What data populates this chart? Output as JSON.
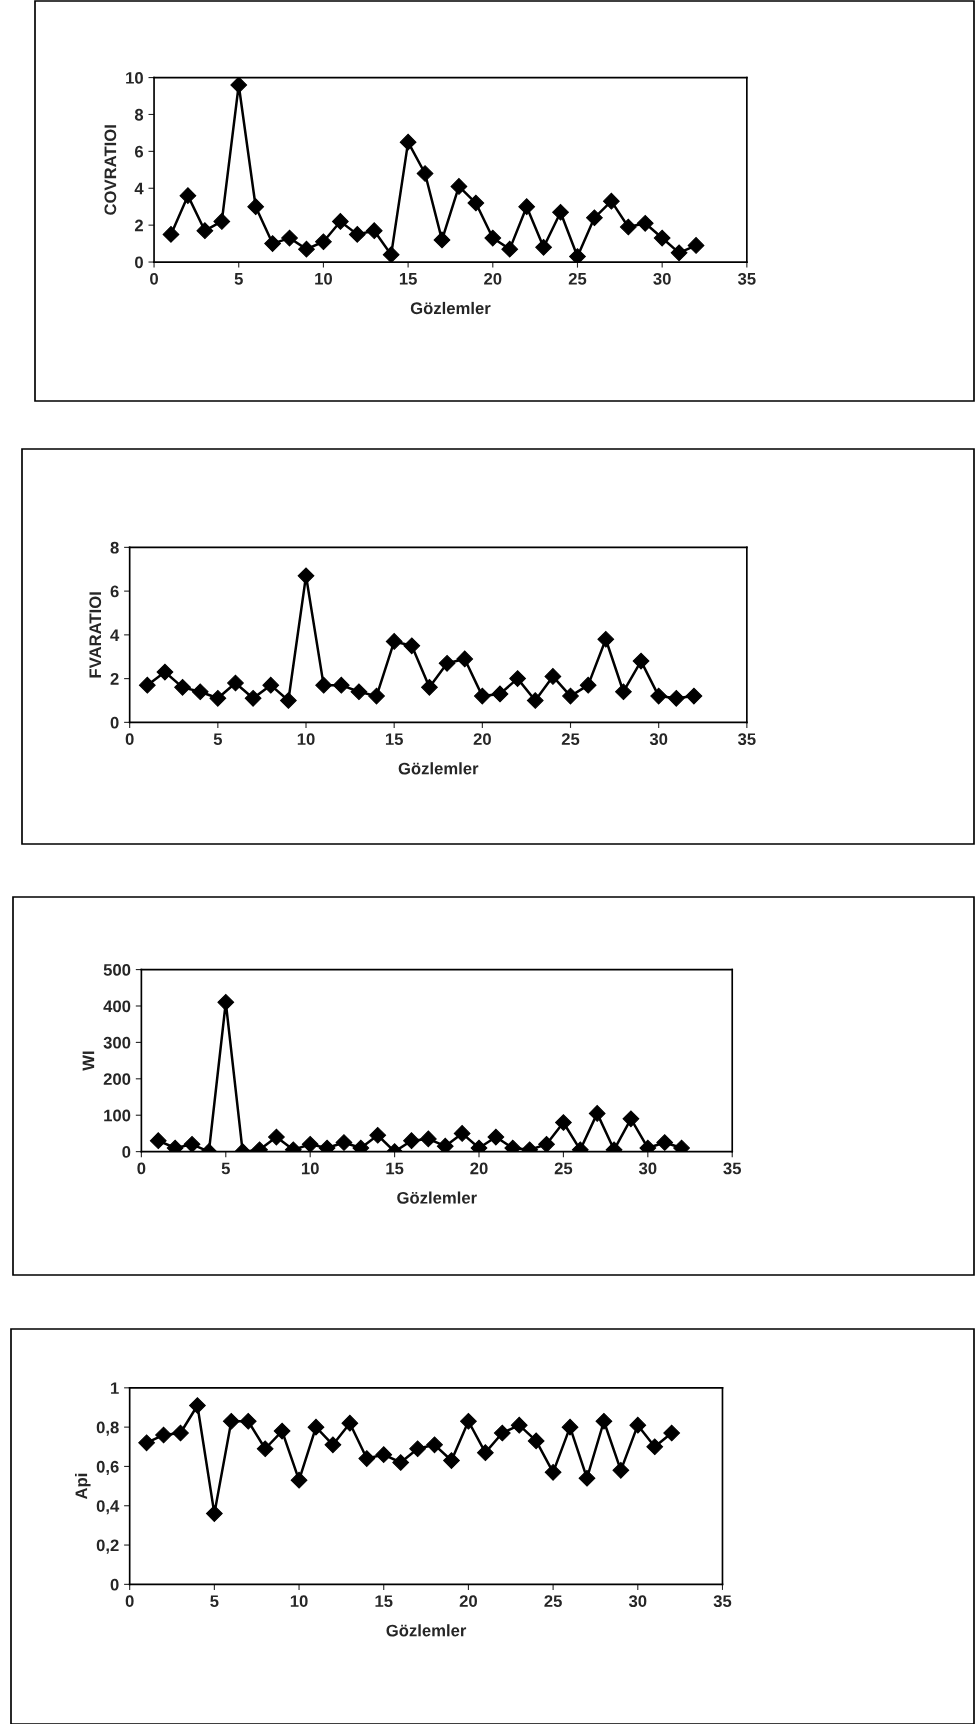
{
  "chart_data": [
    {
      "type": "line",
      "xlabel": "Gözlemler",
      "ylabel": "COVRATIOI",
      "x": [
        1,
        2,
        3,
        4,
        5,
        6,
        7,
        8,
        9,
        10,
        11,
        12,
        13,
        14,
        15,
        16,
        17,
        18,
        19,
        20,
        21,
        22,
        23,
        24,
        25,
        26,
        27,
        28,
        29,
        30,
        31,
        32
      ],
      "series": [
        {
          "color": "#000000",
          "values": [
            1.5,
            3.6,
            1.7,
            2.2,
            9.6,
            3.0,
            1.0,
            1.3,
            0.7,
            1.1,
            2.2,
            1.5,
            1.7,
            0.4,
            6.5,
            4.8,
            1.2,
            4.1,
            3.2,
            1.3,
            0.7,
            3.0,
            0.8,
            2.7,
            0.3,
            2.4,
            3.3,
            1.9,
            2.1,
            1.3,
            0.5,
            0.9
          ]
        }
      ],
      "xlim": [
        0,
        35
      ],
      "xticks": [
        0,
        5,
        10,
        15,
        20,
        25,
        30,
        35
      ],
      "ylim": [
        0,
        10
      ],
      "yticks": [
        0,
        2,
        4,
        6,
        8,
        10
      ],
      "marker": "diamond",
      "line_style": "solid",
      "grid": false,
      "legend": false
    },
    {
      "type": "line",
      "xlabel": "Gözlemler",
      "ylabel": "FVARATIOI",
      "x": [
        1,
        2,
        3,
        4,
        5,
        6,
        7,
        8,
        9,
        10,
        11,
        12,
        13,
        14,
        15,
        16,
        17,
        18,
        19,
        20,
        21,
        22,
        23,
        24,
        25,
        26,
        27,
        28,
        29,
        30,
        31,
        32
      ],
      "series": [
        {
          "color": "#000000",
          "values": [
            1.7,
            2.3,
            1.6,
            1.4,
            1.1,
            1.8,
            1.1,
            1.7,
            1.0,
            6.7,
            1.7,
            1.7,
            1.4,
            1.2,
            3.7,
            3.5,
            1.6,
            2.7,
            2.9,
            1.2,
            1.3,
            2.0,
            1.0,
            2.1,
            1.2,
            1.7,
            3.8,
            1.4,
            2.8,
            1.2,
            1.1,
            1.2
          ]
        }
      ],
      "xlim": [
        0,
        35
      ],
      "xticks": [
        0,
        5,
        10,
        15,
        20,
        25,
        30,
        35
      ],
      "ylim": [
        0,
        8
      ],
      "yticks": [
        0,
        2,
        4,
        6,
        8
      ],
      "marker": "diamond",
      "line_style": "solid",
      "grid": false,
      "legend": false
    },
    {
      "type": "line",
      "xlabel": "Gözlemler",
      "ylabel": "WI",
      "x": [
        1,
        2,
        3,
        4,
        5,
        6,
        7,
        8,
        9,
        10,
        11,
        12,
        13,
        14,
        15,
        16,
        17,
        18,
        19,
        20,
        21,
        22,
        23,
        24,
        25,
        26,
        27,
        28,
        29,
        30,
        31,
        32
      ],
      "series": [
        {
          "color": "#000000",
          "values": [
            30,
            10,
            20,
            0,
            410,
            0,
            5,
            40,
            5,
            20,
            10,
            25,
            10,
            45,
            0,
            30,
            35,
            15,
            50,
            10,
            40,
            10,
            5,
            20,
            80,
            5,
            105,
            5,
            90,
            10,
            25,
            10
          ]
        }
      ],
      "xlim": [
        0,
        35
      ],
      "xticks": [
        0,
        5,
        10,
        15,
        20,
        25,
        30,
        35
      ],
      "ylim": [
        0,
        500
      ],
      "yticks": [
        0,
        100,
        200,
        300,
        400,
        500
      ],
      "marker": "diamond",
      "line_style": "solid",
      "grid": false,
      "legend": false
    },
    {
      "type": "line",
      "xlabel": "Gözlemler",
      "ylabel": "Api",
      "x": [
        1,
        2,
        3,
        4,
        5,
        6,
        7,
        8,
        9,
        10,
        11,
        12,
        13,
        14,
        15,
        16,
        17,
        18,
        19,
        20,
        21,
        22,
        23,
        24,
        25,
        26,
        27,
        28,
        29,
        30,
        31,
        32
      ],
      "series": [
        {
          "color": "#000000",
          "values": [
            0.72,
            0.76,
            0.77,
            0.91,
            0.36,
            0.83,
            0.83,
            0.69,
            0.78,
            0.53,
            0.8,
            0.71,
            0.82,
            0.64,
            0.66,
            0.62,
            0.69,
            0.71,
            0.63,
            0.83,
            0.67,
            0.77,
            0.81,
            0.73,
            0.57,
            0.8,
            0.54,
            0.83,
            0.58,
            0.81,
            0.7,
            0.77
          ]
        }
      ],
      "xlim": [
        0,
        35
      ],
      "xticks": [
        0,
        5,
        10,
        15,
        20,
        25,
        30,
        35
      ],
      "ylim": [
        0,
        1
      ],
      "yticks": [
        0,
        {
          "value": 0.2,
          "label": "0,2"
        },
        {
          "value": 0.4,
          "label": "0,4"
        },
        {
          "value": 0.6,
          "label": "0,6"
        },
        {
          "value": 0.8,
          "label": "0,8"
        },
        1
      ],
      "marker": "diamond",
      "line_style": "solid",
      "grid": false,
      "legend": false
    }
  ]
}
